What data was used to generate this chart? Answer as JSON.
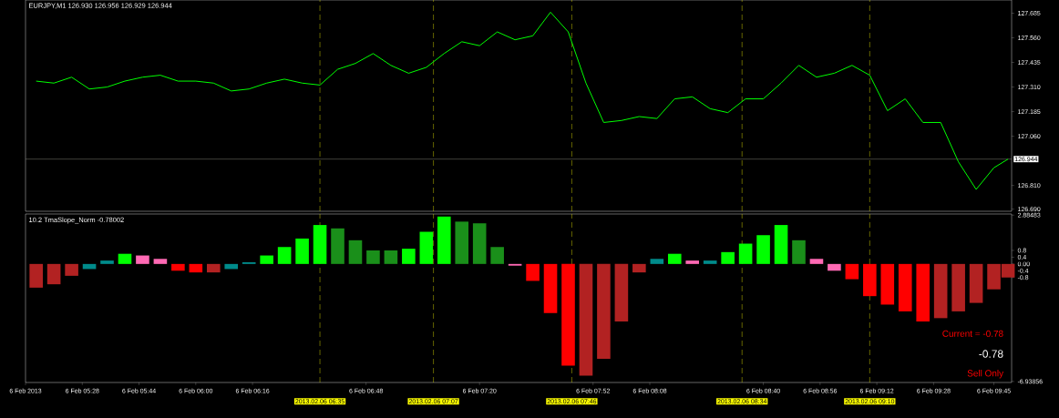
{
  "chart_data": [
    {
      "type": "line",
      "title": "EURJPY,M1  126.930 126.956 126.929 126.944",
      "x": [
        "2013-02-06T05:15",
        "2013-02-06T05:20",
        "2013-02-06T05:25",
        "2013-02-06T05:30",
        "2013-02-06T05:35",
        "2013-02-06T05:40",
        "2013-02-06T05:45",
        "2013-02-06T05:50",
        "2013-02-06T05:55",
        "2013-02-06T06:00",
        "2013-02-06T06:05",
        "2013-02-06T06:10",
        "2013-02-06T06:15",
        "2013-02-06T06:20",
        "2013-02-06T06:25",
        "2013-02-06T06:30",
        "2013-02-06T06:35",
        "2013-02-06T06:40",
        "2013-02-06T06:45",
        "2013-02-06T06:50",
        "2013-02-06T06:55",
        "2013-02-06T07:00",
        "2013-02-06T07:05",
        "2013-02-06T07:10",
        "2013-02-06T07:15",
        "2013-02-06T07:20",
        "2013-02-06T07:25",
        "2013-02-06T07:30",
        "2013-02-06T07:35",
        "2013-02-06T07:40",
        "2013-02-06T07:45",
        "2013-02-06T07:50",
        "2013-02-06T07:55",
        "2013-02-06T08:00",
        "2013-02-06T08:05",
        "2013-02-06T08:10",
        "2013-02-06T08:15",
        "2013-02-06T08:20",
        "2013-02-06T08:25",
        "2013-02-06T08:30",
        "2013-02-06T08:35",
        "2013-02-06T08:40",
        "2013-02-06T08:45",
        "2013-02-06T08:50",
        "2013-02-06T08:55",
        "2013-02-06T09:00",
        "2013-02-06T09:05",
        "2013-02-06T09:10",
        "2013-02-06T09:15",
        "2013-02-06T09:20",
        "2013-02-06T09:25",
        "2013-02-06T09:30",
        "2013-02-06T09:35",
        "2013-02-06T09:40",
        "2013-02-06T09:45",
        "2013-02-06T09:49"
      ],
      "series": [
        {
          "color": "#00ff00",
          "values": [
            127.34,
            127.33,
            127.36,
            127.3,
            127.31,
            127.34,
            127.36,
            127.37,
            127.34,
            127.34,
            127.33,
            127.29,
            127.3,
            127.33,
            127.35,
            127.33,
            127.32,
            127.4,
            127.43,
            127.48,
            127.42,
            127.38,
            127.41,
            127.48,
            127.54,
            127.52,
            127.59,
            127.55,
            127.57,
            127.69,
            127.59,
            127.33,
            127.13,
            127.14,
            127.16,
            127.15,
            127.25,
            127.26,
            127.2,
            127.18,
            127.25,
            127.25,
            127.33,
            127.42,
            127.36,
            127.38,
            127.42,
            127.37,
            127.19,
            127.25,
            127.13,
            127.13,
            126.93,
            126.79,
            126.9,
            126.944
          ]
        }
      ],
      "xlim": [
        "2013-02-06T05:12",
        "2013-02-06T09:50"
      ],
      "ylim": [
        126.679,
        127.752
      ],
      "yticks": [
        {
          "value": 126.69,
          "label": "126.690"
        },
        {
          "value": 126.81,
          "label": "126.810"
        },
        {
          "value": 127.06,
          "label": "127.060"
        },
        127.185,
        {
          "value": 127.31,
          "label": "127.310"
        },
        127.435,
        {
          "value": 127.56,
          "label": "127.560"
        },
        127.685
      ],
      "tick_labels": "y",
      "ref_lines": [
        {
          "axis": "y",
          "value": 126.944,
          "label": "126.944",
          "color": "#a0a090"
        },
        {
          "axis": "x",
          "value": "2013-02-06T06:35",
          "color": "#ffff00",
          "line_style": "dashed"
        },
        {
          "axis": "x",
          "value": "2013-02-06T07:07",
          "color": "#ffff00",
          "line_style": "dashed"
        },
        {
          "axis": "x",
          "value": "2013-02-06T07:46",
          "color": "#ffff00",
          "line_style": "dashed"
        },
        {
          "axis": "x",
          "value": "2013-02-06T08:34",
          "color": "#ffff00",
          "line_style": "dashed"
        },
        {
          "axis": "x",
          "value": "2013-02-06T09:10",
          "color": "#ffff00",
          "line_style": "dashed"
        }
      ]
    },
    {
      "type": "bar",
      "title": "10.2 TmaSlope_Norm -0.78002",
      "x": [
        "2013-02-06T05:15",
        "2013-02-06T05:20",
        "2013-02-06T05:25",
        "2013-02-06T05:30",
        "2013-02-06T05:35",
        "2013-02-06T05:40",
        "2013-02-06T05:45",
        "2013-02-06T05:50",
        "2013-02-06T05:55",
        "2013-02-06T06:00",
        "2013-02-06T06:05",
        "2013-02-06T06:10",
        "2013-02-06T06:15",
        "2013-02-06T06:20",
        "2013-02-06T06:25",
        "2013-02-06T06:30",
        "2013-02-06T06:35",
        "2013-02-06T06:40",
        "2013-02-06T06:45",
        "2013-02-06T06:50",
        "2013-02-06T06:55",
        "2013-02-06T07:00",
        "2013-02-06T07:05",
        "2013-02-06T07:10",
        "2013-02-06T07:15",
        "2013-02-06T07:20",
        "2013-02-06T07:25",
        "2013-02-06T07:30",
        "2013-02-06T07:35",
        "2013-02-06T07:40",
        "2013-02-06T07:45",
        "2013-02-06T07:50",
        "2013-02-06T07:55",
        "2013-02-06T08:00",
        "2013-02-06T08:05",
        "2013-02-06T08:10",
        "2013-02-06T08:15",
        "2013-02-06T08:20",
        "2013-02-06T08:25",
        "2013-02-06T08:30",
        "2013-02-06T08:35",
        "2013-02-06T08:40",
        "2013-02-06T08:45",
        "2013-02-06T08:50",
        "2013-02-06T08:55",
        "2013-02-06T09:00",
        "2013-02-06T09:05",
        "2013-02-06T09:10",
        "2013-02-06T09:15",
        "2013-02-06T09:20",
        "2013-02-06T09:25",
        "2013-02-06T09:30",
        "2013-02-06T09:35",
        "2013-02-06T09:40",
        "2013-02-06T09:45",
        "2013-02-06T09:49"
      ],
      "values": [
        -1.4,
        -1.2,
        -0.7,
        -0.3,
        0.2,
        0.6,
        0.5,
        0.3,
        -0.4,
        -0.5,
        -0.5,
        -0.3,
        0.1,
        0.5,
        1.0,
        1.5,
        2.3,
        2.1,
        1.4,
        0.8,
        0.8,
        0.9,
        1.9,
        2.8,
        2.5,
        2.4,
        1.0,
        -0.1,
        -1.0,
        -2.9,
        -6.0,
        -6.6,
        -5.6,
        -3.4,
        -0.5,
        0.3,
        0.6,
        0.2,
        0.2,
        0.7,
        1.2,
        1.7,
        2.3,
        1.4,
        0.3,
        -0.4,
        -0.9,
        -1.9,
        -2.4,
        -2.8,
        -3.4,
        -3.2,
        -2.8,
        -2.3,
        -1.5,
        -0.8
      ],
      "colors": [
        "#b22222",
        "#b22222",
        "#b22222",
        "#008b8b",
        "#008b8b",
        "#00ff00",
        "#ff69b4",
        "#ff69b4",
        "#ff0000",
        "#ff0000",
        "#b22222",
        "#008b8b",
        "#008b8b",
        "#00ff00",
        "#00ff00",
        "#00ff00",
        "#00ff00",
        "#1a8f1a",
        "#1a8f1a",
        "#1a8f1a",
        "#1a8f1a",
        "#00ff00",
        "#00ff00",
        "#00ff00",
        "#1a8f1a",
        "#1a8f1a",
        "#1a8f1a",
        "#ff69b4",
        "#ff0000",
        "#ff0000",
        "#ff0000",
        "#b22222",
        "#b22222",
        "#b22222",
        "#b22222",
        "#008b8b",
        "#00ff00",
        "#ff69b4",
        "#008b8b",
        "#00ff00",
        "#00ff00",
        "#00ff00",
        "#00ff00",
        "#1a8f1a",
        "#ff69b4",
        "#ff69b4",
        "#ff0000",
        "#ff0000",
        "#ff0000",
        "#ff0000",
        "#ff0000",
        "#b22222",
        "#b22222",
        "#b22222",
        "#b22222",
        "#b22222"
      ],
      "xlim": [
        "2013-02-06T05:12",
        "2013-02-06T09:50"
      ],
      "xticks": [
        {
          "value": "2013-02-06T05:12",
          "label": "6 Feb 2013"
        },
        {
          "value": "2013-02-06T05:28",
          "label": "6 Feb 05:28"
        },
        {
          "value": "2013-02-06T05:44",
          "label": "6 Feb 05:44"
        },
        {
          "value": "2013-02-06T06:00",
          "label": "6 Feb 06:00"
        },
        {
          "value": "2013-02-06T06:16",
          "label": "6 Feb 06:16"
        },
        {
          "value": "2013-02-06T06:48",
          "label": "6 Feb 06:48"
        },
        {
          "value": "2013-02-06T07:20",
          "label": "6 Feb 07:20"
        },
        {
          "value": "2013-02-06T07:52",
          "label": "6 Feb 07:52"
        },
        {
          "value": "2013-02-06T08:08",
          "label": "6 Feb 08:08"
        },
        {
          "value": "2013-02-06T08:40",
          "label": "6 Feb 08:40"
        },
        {
          "value": "2013-02-06T08:56",
          "label": "6 Feb 08:56"
        },
        {
          "value": "2013-02-06T09:12",
          "label": "6 Feb 09:12"
        },
        {
          "value": "2013-02-06T09:28",
          "label": "6 Feb 09:28"
        },
        {
          "value": "2013-02-06T09:45",
          "label": "6 Feb 09:45"
        }
      ],
      "ylim": [
        -7.0,
        2.95
      ],
      "yticks": [
        2.88483,
        0.8,
        0.4,
        {
          "value": 0,
          "label": "0.00"
        },
        -0.4,
        -0.8,
        -6.93856
      ],
      "ref_lines": [
        {
          "axis": "x",
          "value": "2013-02-06T06:35",
          "label": "2013.02.06 06:35",
          "color": "#ffff00",
          "line_style": "dashed"
        },
        {
          "axis": "x",
          "value": "2013-02-06T07:07",
          "label": "2013.02.06 07:07",
          "color": "#ffff00",
          "line_style": "dashed"
        },
        {
          "axis": "x",
          "value": "2013-02-06T07:46",
          "label": "2013.02.06 07:46",
          "color": "#ffff00",
          "line_style": "dashed"
        },
        {
          "axis": "x",
          "value": "2013-02-06T08:34",
          "label": "2013.02.06 08:34",
          "color": "#ffff00",
          "line_style": "dashed"
        },
        {
          "axis": "x",
          "value": "2013-02-06T09:10",
          "label": "2013.02.06 09:10",
          "color": "#ffff00",
          "line_style": "dashed"
        }
      ],
      "annotations": [
        "Current = -0.78",
        "-0.78",
        "Sell Only"
      ]
    }
  ]
}
